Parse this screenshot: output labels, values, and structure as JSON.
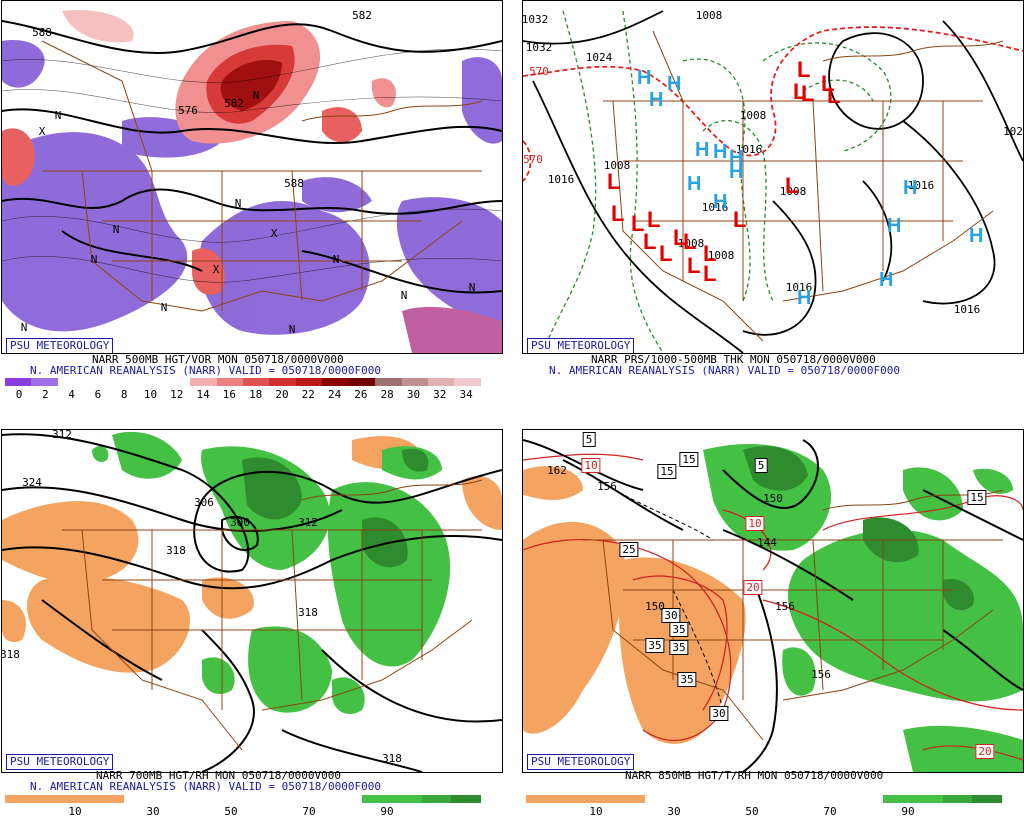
{
  "badge": "PSU METEOROLOGY",
  "colors": {
    "vort_pos": [
      "#f7c0c0",
      "#f09090",
      "#e86060",
      "#d83a3a",
      "#c42020",
      "#a01010",
      "#7a0000"
    ],
    "vort_neg": "#8a64d8",
    "dry": "#f4a460",
    "moist": "#44c044",
    "moist_dark": "#2e8b2e",
    "border": "#8b4513",
    "contour": "#000000"
  },
  "panels": [
    {
      "id": "500mb",
      "caption1": "NARR 500MB HGT/VOR MON 050718/0000V000",
      "caption2": "N. AMERICAN REANALYSIS (NARR) VALID = 050718/0000F000",
      "colorbar": [
        "#8a3ee0",
        "#a070e8",
        "#ffffff",
        "#ffffff",
        "#ffffff",
        "#ffffff",
        "#ffffff",
        "#f4b0b0",
        "#ec8080",
        "#e05050",
        "#d03030",
        "#b81818",
        "#8b0000",
        "#700000",
        "#a07070",
        "#c09090",
        "#e0b0b0",
        "#f0c8d0"
      ],
      "ticks": [
        "0",
        "2",
        "4",
        "6",
        "8",
        "10",
        "12",
        "14",
        "16",
        "18",
        "20",
        "22",
        "24",
        "26",
        "28",
        "30",
        "32",
        "34"
      ],
      "labels": [
        "588",
        "576",
        "582",
        "588",
        "582"
      ],
      "symbols": [
        "N",
        "N",
        "N",
        "N",
        "N",
        "N",
        "N",
        "X",
        "X",
        "X",
        "N",
        "N",
        "N",
        "N"
      ]
    },
    {
      "id": "thk",
      "caption1": "NARR PRS/1000-500MB THK MON 050718/0000V000",
      "caption2": "N. AMERICAN REANALYSIS (NARR) VALID = 050718/0000F000",
      "labels": [
        "1032",
        "1032",
        "1024",
        "1008",
        "1016",
        "1008",
        "1008",
        "1008",
        "1016",
        "1016",
        "1016",
        "570",
        "570",
        "1008",
        "1008",
        "1016",
        "1016",
        "102"
      ],
      "highs": [
        "H",
        "H",
        "H",
        "H",
        "H",
        "H",
        "H",
        "H",
        "H",
        "H",
        "H",
        "H",
        "H",
        "H"
      ],
      "lows": [
        "L",
        "L",
        "L",
        "L",
        "L",
        "L",
        "L",
        "L",
        "L",
        "L",
        "L",
        "L",
        "L",
        "L",
        "L",
        "L",
        "L",
        "L"
      ]
    },
    {
      "id": "700mb",
      "caption1": "NARR 700MB HGT/RH MON 050718/0000V000",
      "caption2": "N. AMERICAN REANALYSIS (NARR) VALID = 050718/0000F000",
      "ticks": [
        "10",
        "30",
        "50",
        "70",
        "90"
      ],
      "labels": [
        "312",
        "324",
        "306",
        "300",
        "312",
        "318",
        "318",
        "318",
        "318"
      ]
    },
    {
      "id": "850mb",
      "caption1": "NARR 850MB HGT/T/RH MON 050718/0000V000",
      "caption2": "",
      "ticks": [
        "10",
        "30",
        "50",
        "70",
        "90"
      ],
      "labels": [
        "162",
        "156",
        "5",
        "10",
        "15",
        "15",
        "5",
        "10",
        "150",
        "144",
        "25",
        "20",
        "30",
        "35",
        "35",
        "35",
        "35",
        "30",
        "156",
        "15",
        "20",
        "156",
        "150"
      ]
    }
  ]
}
